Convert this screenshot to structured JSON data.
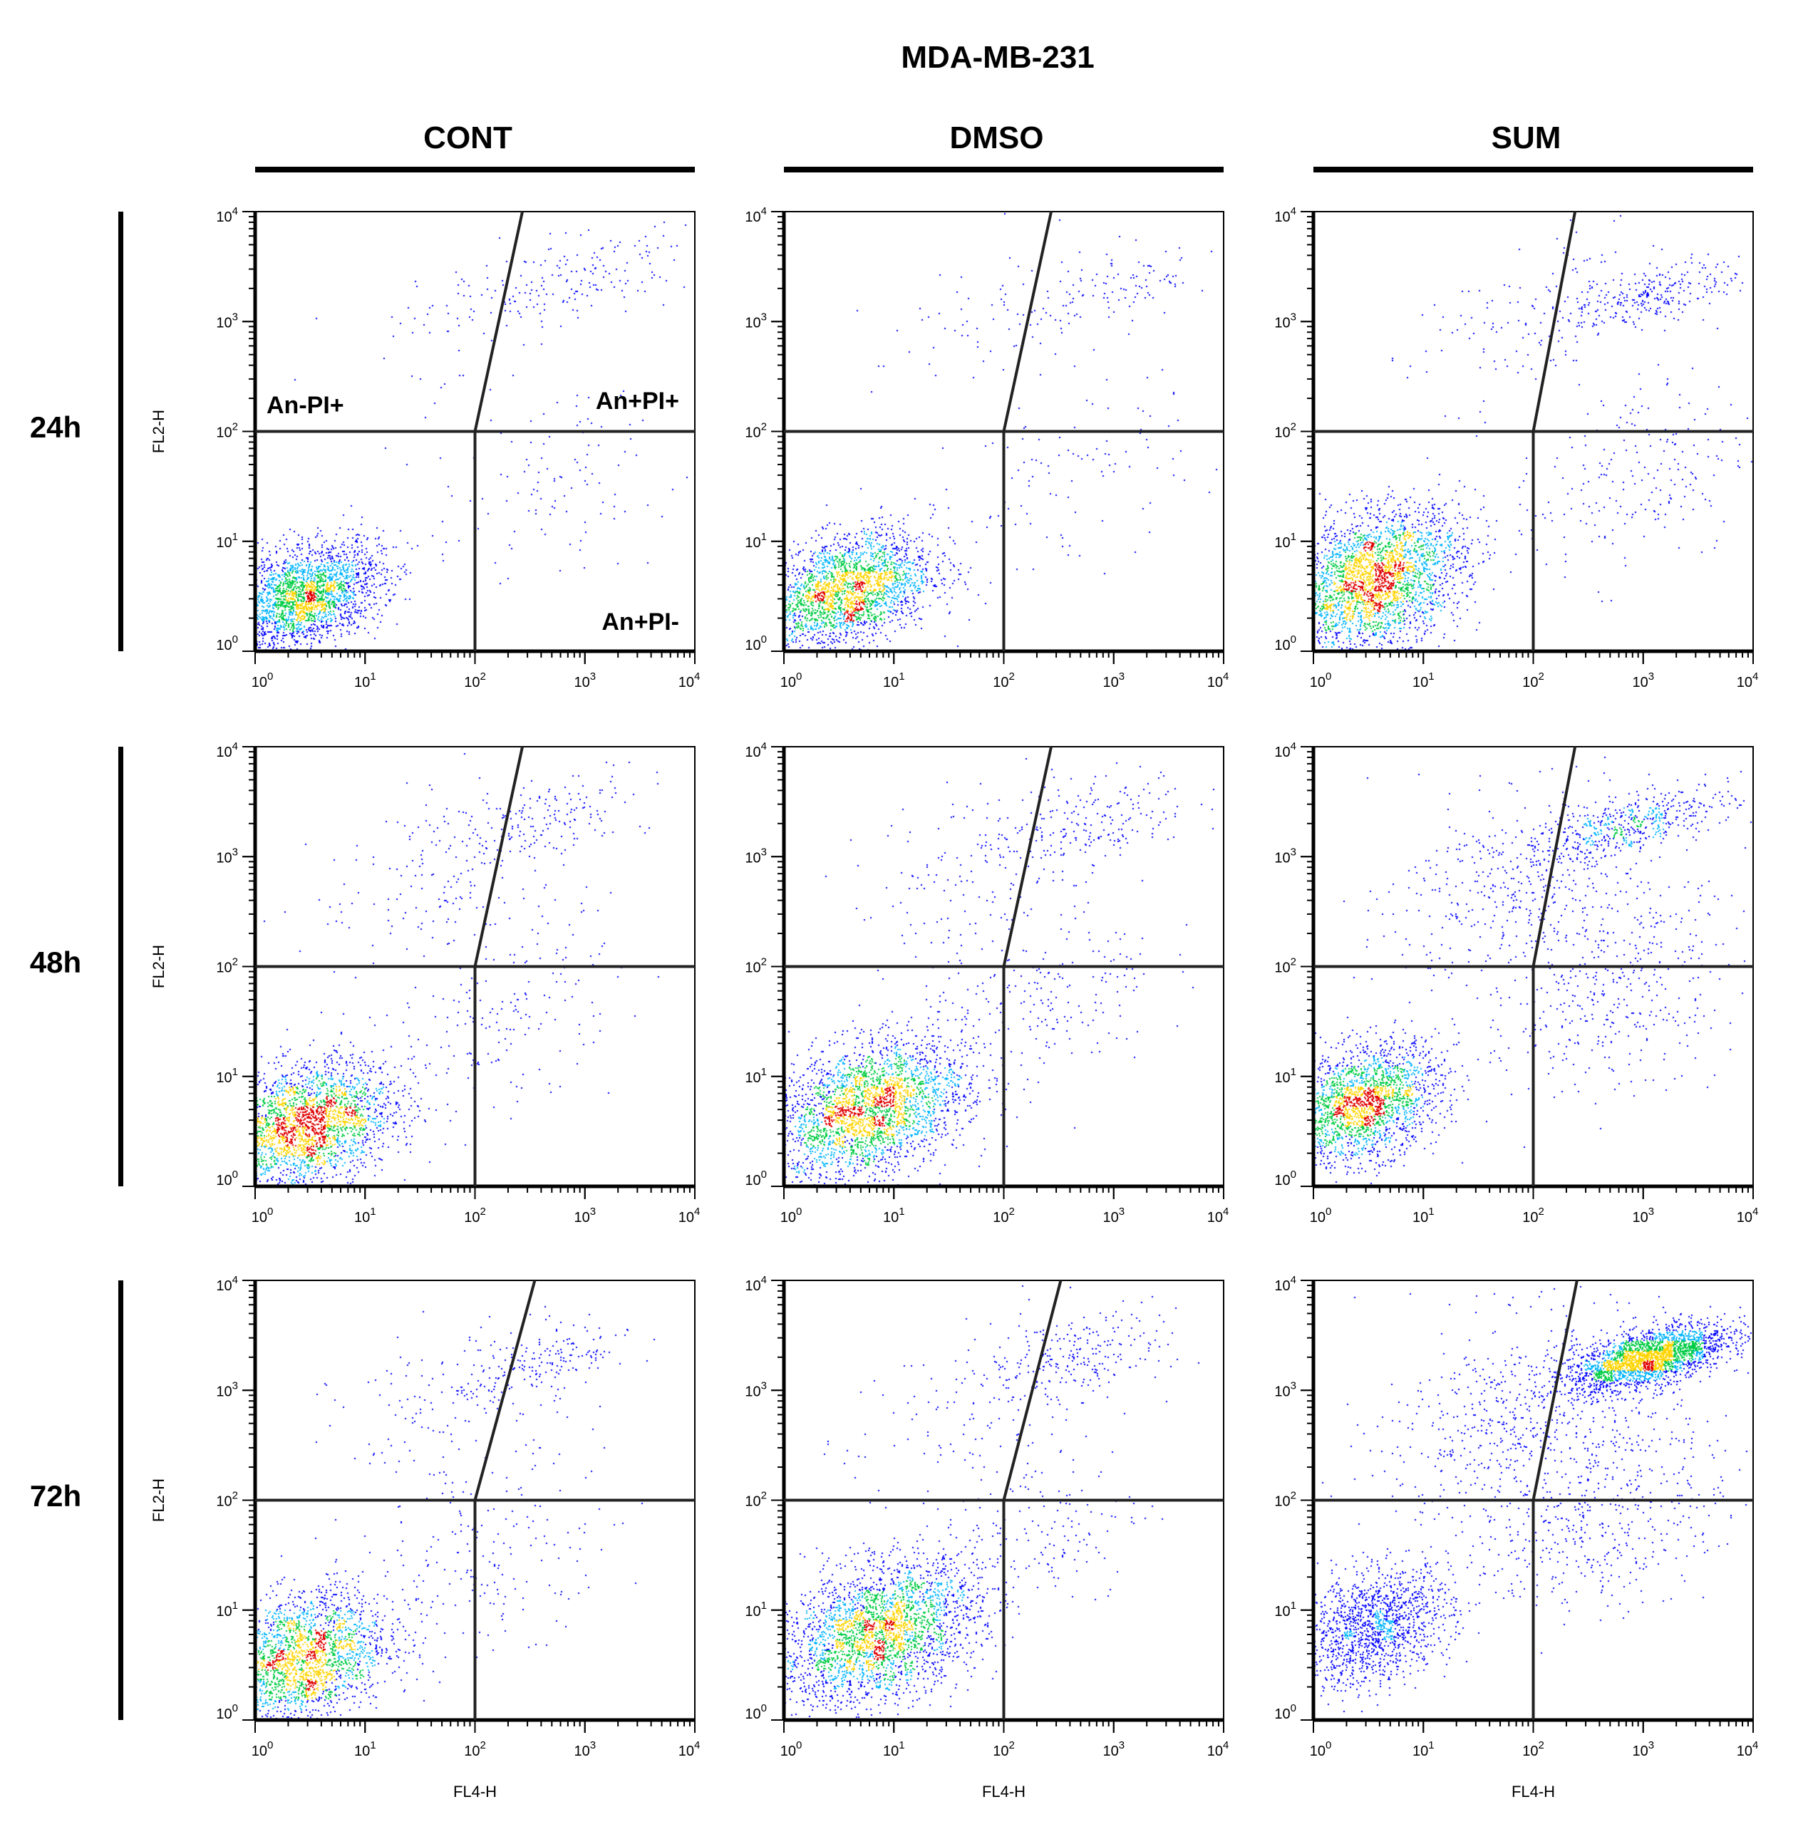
{
  "figure": {
    "title": "MDA-MB-231",
    "columns": [
      "CONT",
      "DMSO",
      "SUM"
    ],
    "rows": [
      "24h",
      "48h",
      "72h"
    ],
    "x_axis_label": "FL4-H",
    "y_axis_label": "FL2-H",
    "tick_labels": [
      {
        "base": "10",
        "exp": "0"
      },
      {
        "base": "10",
        "exp": "1"
      },
      {
        "base": "10",
        "exp": "2"
      },
      {
        "base": "10",
        "exp": "3"
      },
      {
        "base": "10",
        "exp": "4"
      }
    ],
    "quadrant_labels": {
      "upper_left": "An-PI+",
      "upper_right": "An+PI+",
      "lower_right": "An+PI-"
    }
  },
  "colors": {
    "axis": "#000000",
    "dots_low": "#0000ff",
    "dots_mid": "#00b4ff",
    "dots_high1": "#00cc44",
    "dots_high2": "#ffd400",
    "dots_peak": "#e00000"
  },
  "chart_data": [
    {
      "type": "scatter",
      "title": "CONT 24h",
      "x_scale": "log",
      "y_scale": "log",
      "xlim": [
        1,
        10000
      ],
      "ylim": [
        1,
        10000
      ],
      "xlabel": "",
      "ylabel": "FL2-H",
      "gate": {
        "x": 100,
        "y": 100,
        "upper_x_at_top": 270
      },
      "clusters": [
        {
          "cx": 0.45,
          "cy": 0.5,
          "sx": 0.35,
          "sy": 0.22,
          "n": 2300
        },
        {
          "cx": 2.9,
          "cy": 3.4,
          "sx": 0.55,
          "sy": 0.18,
          "n": 160
        },
        {
          "cx": 1.9,
          "cy": 3.0,
          "sx": 0.55,
          "sy": 0.35,
          "n": 60
        },
        {
          "cx": 2.7,
          "cy": 1.5,
          "sx": 0.55,
          "sy": 0.4,
          "n": 110
        }
      ]
    },
    {
      "type": "scatter",
      "title": "DMSO 24h",
      "x_scale": "log",
      "y_scale": "log",
      "xlim": [
        1,
        10000
      ],
      "ylim": [
        1,
        10000
      ],
      "xlabel": "",
      "ylabel": "",
      "gate": {
        "x": 100,
        "y": 100,
        "upper_x_at_top": 270
      },
      "clusters": [
        {
          "cx": 0.55,
          "cy": 0.55,
          "sx": 0.4,
          "sy": 0.25,
          "n": 2400
        },
        {
          "cx": 3.0,
          "cy": 3.3,
          "sx": 0.45,
          "sy": 0.18,
          "n": 110
        },
        {
          "cx": 1.9,
          "cy": 3.0,
          "sx": 0.55,
          "sy": 0.35,
          "n": 60
        },
        {
          "cx": 2.6,
          "cy": 1.6,
          "sx": 0.55,
          "sy": 0.4,
          "n": 100
        }
      ]
    },
    {
      "type": "scatter",
      "title": "SUM 24h",
      "x_scale": "log",
      "y_scale": "log",
      "xlim": [
        1,
        10000
      ],
      "ylim": [
        1,
        10000
      ],
      "xlabel": "",
      "ylabel": "",
      "gate": {
        "x": 100,
        "y": 100,
        "upper_x_at_top": 240
      },
      "clusters": [
        {
          "cx": 0.55,
          "cy": 0.65,
          "sx": 0.4,
          "sy": 0.3,
          "n": 2800
        },
        {
          "cx": 3.1,
          "cy": 3.25,
          "sx": 0.4,
          "sy": 0.12,
          "n": 260
        },
        {
          "cx": 2.0,
          "cy": 3.0,
          "sx": 0.55,
          "sy": 0.35,
          "n": 140
        },
        {
          "cx": 2.9,
          "cy": 1.6,
          "sx": 0.55,
          "sy": 0.45,
          "n": 220
        }
      ]
    },
    {
      "type": "scatter",
      "title": "CONT 48h",
      "x_scale": "log",
      "y_scale": "log",
      "xlim": [
        1,
        10000
      ],
      "ylim": [
        1,
        10000
      ],
      "xlabel": "",
      "ylabel": "FL2-H",
      "gate": {
        "x": 100,
        "y": 100,
        "upper_x_at_top": 270
      },
      "clusters": [
        {
          "cx": 0.45,
          "cy": 0.55,
          "sx": 0.4,
          "sy": 0.28,
          "n": 2500
        },
        {
          "cx": 2.6,
          "cy": 3.35,
          "sx": 0.5,
          "sy": 0.18,
          "n": 180
        },
        {
          "cx": 1.7,
          "cy": 2.8,
          "sx": 0.6,
          "sy": 0.4,
          "n": 140
        },
        {
          "cx": 2.3,
          "cy": 1.6,
          "sx": 0.5,
          "sy": 0.4,
          "n": 180
        }
      ]
    },
    {
      "type": "scatter",
      "title": "DMSO 48h",
      "x_scale": "log",
      "y_scale": "log",
      "xlim": [
        1,
        10000
      ],
      "ylim": [
        1,
        10000
      ],
      "xlabel": "",
      "ylabel": "",
      "gate": {
        "x": 100,
        "y": 100,
        "upper_x_at_top": 270
      },
      "clusters": [
        {
          "cx": 0.75,
          "cy": 0.7,
          "sx": 0.45,
          "sy": 0.3,
          "n": 2700
        },
        {
          "cx": 2.7,
          "cy": 3.3,
          "sx": 0.5,
          "sy": 0.2,
          "n": 200
        },
        {
          "cx": 1.8,
          "cy": 2.9,
          "sx": 0.6,
          "sy": 0.4,
          "n": 140
        },
        {
          "cx": 2.3,
          "cy": 1.7,
          "sx": 0.55,
          "sy": 0.4,
          "n": 220
        }
      ]
    },
    {
      "type": "scatter",
      "title": "SUM 48h",
      "x_scale": "log",
      "y_scale": "log",
      "xlim": [
        1,
        10000
      ],
      "ylim": [
        1,
        10000
      ],
      "xlabel": "",
      "ylabel": "",
      "gate": {
        "x": 100,
        "y": 100,
        "upper_x_at_top": 240
      },
      "clusters": [
        {
          "cx": 0.45,
          "cy": 0.75,
          "sx": 0.35,
          "sy": 0.25,
          "n": 2100
        },
        {
          "cx": 2.9,
          "cy": 3.3,
          "sx": 0.45,
          "sy": 0.12,
          "n": 450
        },
        {
          "cx": 1.9,
          "cy": 2.8,
          "sx": 0.6,
          "sy": 0.4,
          "n": 450
        },
        {
          "cx": 2.7,
          "cy": 1.8,
          "sx": 0.6,
          "sy": 0.45,
          "n": 420
        }
      ]
    },
    {
      "type": "scatter",
      "title": "CONT 72h",
      "x_scale": "log",
      "y_scale": "log",
      "xlim": [
        1,
        10000
      ],
      "ylim": [
        1,
        10000
      ],
      "xlabel": "FL4-H",
      "ylabel": "FL2-H",
      "gate": {
        "x": 100,
        "y": 100,
        "upper_x_at_top": 350
      },
      "clusters": [
        {
          "cx": 0.4,
          "cy": 0.55,
          "sx": 0.4,
          "sy": 0.3,
          "n": 2300
        },
        {
          "cx": 2.6,
          "cy": 3.25,
          "sx": 0.4,
          "sy": 0.15,
          "n": 170
        },
        {
          "cx": 1.8,
          "cy": 2.8,
          "sx": 0.55,
          "sy": 0.4,
          "n": 150
        },
        {
          "cx": 2.2,
          "cy": 1.5,
          "sx": 0.55,
          "sy": 0.4,
          "n": 170
        }
      ]
    },
    {
      "type": "scatter",
      "title": "DMSO 72h",
      "x_scale": "log",
      "y_scale": "log",
      "xlim": [
        1,
        10000
      ],
      "ylim": [
        1,
        10000
      ],
      "xlabel": "FL4-H",
      "ylabel": "",
      "gate": {
        "x": 100,
        "y": 100,
        "upper_x_at_top": 330
      },
      "clusters": [
        {
          "cx": 0.85,
          "cy": 0.8,
          "sx": 0.45,
          "sy": 0.3,
          "n": 2700
        },
        {
          "cx": 2.7,
          "cy": 3.3,
          "sx": 0.45,
          "sy": 0.18,
          "n": 200
        },
        {
          "cx": 1.8,
          "cy": 2.9,
          "sx": 0.6,
          "sy": 0.4,
          "n": 140
        },
        {
          "cx": 2.2,
          "cy": 1.7,
          "sx": 0.55,
          "sy": 0.4,
          "n": 180
        }
      ]
    },
    {
      "type": "scatter",
      "title": "SUM 72h",
      "x_scale": "log",
      "y_scale": "log",
      "xlim": [
        1,
        10000
      ],
      "ylim": [
        1,
        10000
      ],
      "xlabel": "FL4-H",
      "ylabel": "",
      "gate": {
        "x": 100,
        "y": 100,
        "upper_x_at_top": 250
      },
      "clusters": [
        {
          "cx": 3.05,
          "cy": 3.3,
          "sx": 0.35,
          "sy": 0.12,
          "n": 2300
        },
        {
          "cx": 0.55,
          "cy": 0.85,
          "sx": 0.35,
          "sy": 0.25,
          "n": 1400
        },
        {
          "cx": 1.9,
          "cy": 2.8,
          "sx": 0.65,
          "sy": 0.45,
          "n": 600
        },
        {
          "cx": 2.6,
          "cy": 1.9,
          "sx": 0.6,
          "sy": 0.45,
          "n": 500
        }
      ]
    }
  ]
}
